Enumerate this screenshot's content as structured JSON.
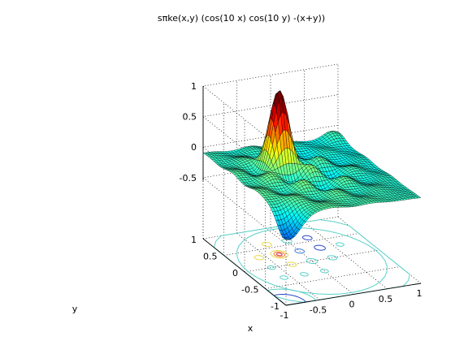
{
  "chart_data": {
    "type": "surface",
    "title": "sπke(x,y) (cos(10 x) cos(10 y) -(x+y))",
    "xlabel": "x",
    "ylabel": "y",
    "zlabel": "",
    "xlim": [
      -1,
      1
    ],
    "ylim": [
      -1,
      1
    ],
    "zlim": [
      -1,
      1
    ],
    "xticks": [
      "-1",
      "-0.5",
      "0",
      "0.5",
      "1"
    ],
    "yticks": [
      "-1",
      "-0.5",
      "0",
      "0.5",
      "1"
    ],
    "zticks": [
      "-0.5",
      "0",
      "0.5",
      "1"
    ],
    "colormap": "jet",
    "grid": true,
    "contour_projection": true,
    "peak": {
      "x": -0.3,
      "y": 0.3,
      "z": 1.0
    },
    "surface_range": [
      -0.9,
      1.0
    ]
  }
}
